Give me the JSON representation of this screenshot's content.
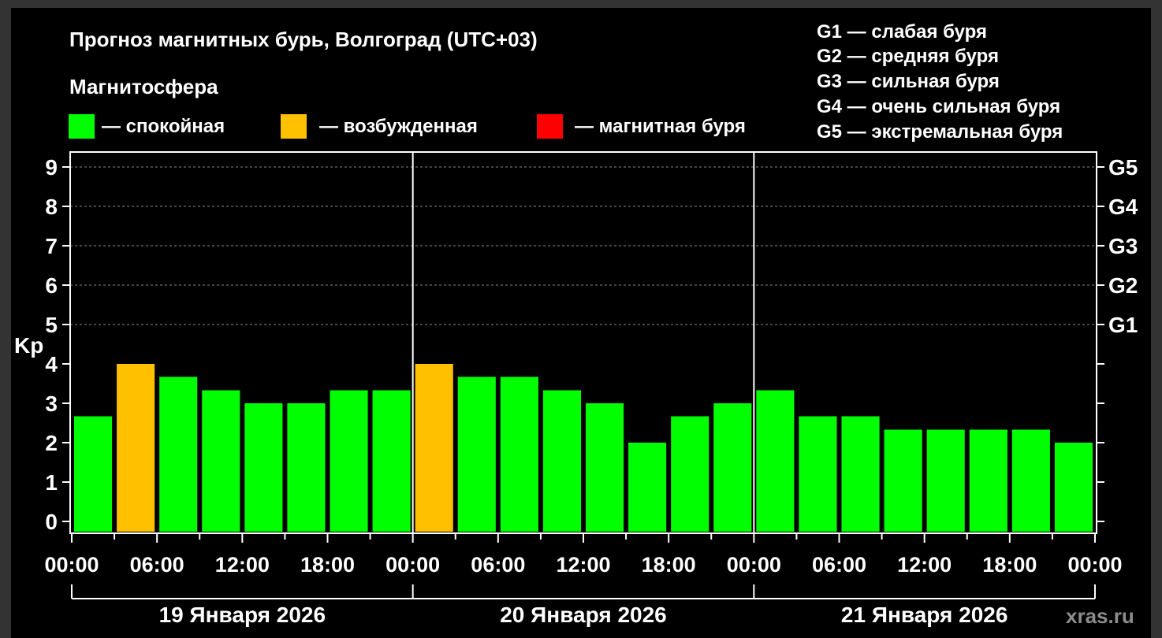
{
  "chart_data": {
    "type": "bar",
    "title": "Прогноз магнитных бурь, Волгоград (UTC+03)",
    "subtitle": "Магнитосфера",
    "ylabel": "Kp",
    "ylim": [
      0,
      9
    ],
    "yticks": [
      "0",
      "1",
      "2",
      "3",
      "4",
      "5",
      "6",
      "7",
      "8",
      "9"
    ],
    "right_ticks": [
      "G1",
      "G2",
      "G3",
      "G4",
      "G5"
    ],
    "grid": true,
    "legend": {
      "placement": "top",
      "items": [
        {
          "label": "— спокойная",
          "color": "#00ff00"
        },
        {
          "label": "— возбужденная",
          "color": "#ffc000"
        },
        {
          "label": "— магнитная буря",
          "color": "#ff0000"
        }
      ]
    },
    "storm_scale": [
      "G1 — слабая буря",
      "G2 — средняя буря",
      "G3 — сильная буря",
      "G4 — очень сильная буря",
      "G5 — экстремальная буря"
    ],
    "x_tick_labels": [
      "00:00",
      "06:00",
      "12:00",
      "18:00",
      "00:00",
      "06:00",
      "12:00",
      "18:00",
      "00:00",
      "06:00",
      "12:00",
      "18:00",
      "00:00"
    ],
    "days": [
      "19 Января 2026",
      "20 Января 2026",
      "21 Января 2026"
    ],
    "values": [
      2.67,
      4.0,
      3.67,
      3.33,
      3.0,
      3.0,
      3.33,
      3.33,
      4.0,
      3.67,
      3.67,
      3.33,
      3.0,
      2.0,
      2.67,
      3.0,
      3.33,
      2.67,
      2.67,
      2.33,
      2.33,
      2.33,
      2.33,
      2.0
    ],
    "colors": [
      "#00ff00",
      "#ffc000",
      "#00ff00",
      "#00ff00",
      "#00ff00",
      "#00ff00",
      "#00ff00",
      "#00ff00",
      "#ffc000",
      "#00ff00",
      "#00ff00",
      "#00ff00",
      "#00ff00",
      "#00ff00",
      "#00ff00",
      "#00ff00",
      "#00ff00",
      "#00ff00",
      "#00ff00",
      "#00ff00",
      "#00ff00",
      "#00ff00",
      "#00ff00",
      "#00ff00"
    ]
  },
  "watermark": "xras.ru"
}
